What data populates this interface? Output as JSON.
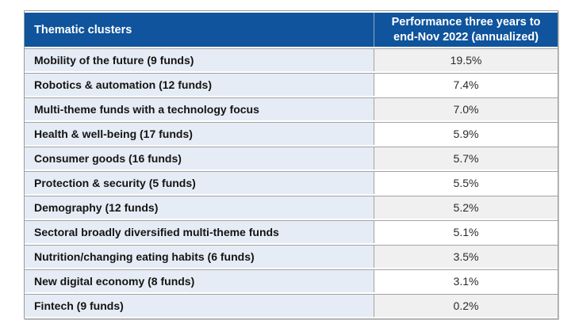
{
  "chart_data": {
    "type": "table",
    "columns": [
      "Thematic clusters",
      "Performance three years to end-Nov 2022 (annualized)"
    ],
    "rows": [
      {
        "label": "Mobility of the future (9 funds)",
        "value": "19.5%"
      },
      {
        "label": "Robotics & automation (12 funds)",
        "value": "7.4%"
      },
      {
        "label": "Multi-theme funds with a technology focus",
        "value": "7.0%"
      },
      {
        "label": "Health & well-being (17 funds)",
        "value": "5.9%"
      },
      {
        "label": "Consumer goods (16 funds)",
        "value": "5.7%"
      },
      {
        "label": "Protection & security (5 funds)",
        "value": "5.5%"
      },
      {
        "label": "Demography (12 funds)",
        "value": "5.2%"
      },
      {
        "label": "Sectoral broadly diversified multi-theme funds",
        "value": "5.1%"
      },
      {
        "label": "Nutrition/changing eating habits (6 funds)",
        "value": "3.5%"
      },
      {
        "label": "New digital economy (8 funds)",
        "value": "3.1%"
      },
      {
        "label": "Fintech (9 funds)",
        "value": "0.2%"
      }
    ],
    "values_numeric": [
      19.5,
      7.4,
      7.0,
      5.9,
      5.7,
      5.5,
      5.2,
      5.1,
      3.5,
      3.1,
      0.2
    ],
    "value_unit": "%"
  },
  "colors": {
    "header_bg": "#0f549c",
    "header_text": "#ffffff",
    "header_divider": "#8fa9c9",
    "label_cell_bg": "#e6ecf5",
    "value_cell_bg_odd": "#f0f0f0",
    "value_cell_bg_even": "#ffffff",
    "grid_border": "#a3a3a3",
    "outer_border": "#9b9b9b",
    "label_text": "#141414",
    "value_text": "#2a2a2a"
  }
}
